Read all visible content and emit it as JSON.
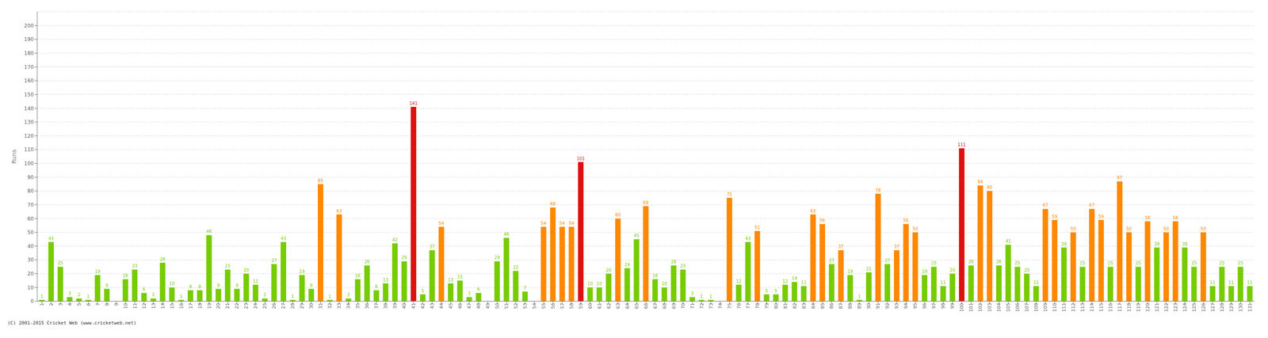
{
  "chart_data": {
    "type": "bar",
    "ylabel": "Runs",
    "annotations": [
      "(C) 2001-2015 Cricket Web (www.cricketweb.net)"
    ],
    "categories": [
      1,
      2,
      3,
      4,
      5,
      6,
      7,
      8,
      9,
      10,
      11,
      12,
      13,
      14,
      15,
      16,
      17,
      18,
      19,
      20,
      21,
      22,
      23,
      24,
      25,
      26,
      27,
      28,
      29,
      30,
      31,
      32,
      33,
      34,
      35,
      36,
      37,
      38,
      39,
      40,
      41,
      42,
      43,
      44,
      45,
      46,
      47,
      48,
      49,
      50,
      51,
      52,
      53,
      54,
      55,
      56,
      57,
      58,
      59,
      60,
      61,
      62,
      63,
      64,
      65,
      66,
      67,
      68,
      69,
      70,
      71,
      72,
      73,
      74,
      75,
      76,
      77,
      78,
      79,
      80,
      81,
      82,
      83,
      84,
      85,
      86,
      87,
      88,
      89,
      90,
      91,
      92,
      93,
      94,
      95,
      96,
      97,
      98,
      99,
      100,
      101,
      102,
      103,
      104,
      105,
      106,
      107,
      108,
      109,
      110,
      111,
      112,
      113,
      114,
      115,
      116,
      117,
      118,
      119,
      120,
      121,
      122,
      123,
      124,
      125,
      126,
      127,
      128,
      129,
      130,
      131
    ],
    "values": [
      1,
      43,
      25,
      3,
      2,
      1,
      19,
      9,
      0,
      16,
      23,
      6,
      2,
      28,
      10,
      1,
      8,
      8,
      48,
      9,
      23,
      9,
      20,
      12,
      2,
      27,
      43,
      1,
      19,
      9,
      85,
      1,
      63,
      2,
      16,
      26,
      8,
      13,
      42,
      29,
      141,
      5,
      37,
      54,
      13,
      15,
      3,
      6,
      0,
      29,
      46,
      22,
      7,
      0,
      54,
      68,
      54,
      54,
      101,
      10,
      10,
      20,
      60,
      24,
      45,
      69,
      16,
      10,
      26,
      23,
      3,
      1,
      1,
      0,
      75,
      12,
      43,
      51,
      5,
      5,
      12,
      14,
      11,
      63,
      56,
      27,
      37,
      19,
      1,
      21,
      78,
      27,
      37,
      56,
      50,
      19,
      25,
      11,
      20,
      111,
      26,
      84,
      80,
      26,
      41,
      25,
      20,
      11,
      67,
      59,
      39,
      50,
      25,
      67,
      59,
      25,
      87,
      50,
      25,
      58,
      39,
      50,
      58,
      39,
      25,
      50,
      11,
      25,
      11,
      25,
      11
    ],
    "colors": [
      "#77cc00",
      "#77cc00",
      "#77cc00",
      "#77cc00",
      "#77cc00",
      "#77cc00",
      "#77cc00",
      "#77cc00",
      "#77cc00",
      "#77cc00",
      "#77cc00",
      "#77cc00",
      "#77cc00",
      "#77cc00",
      "#77cc00",
      "#77cc00",
      "#77cc00",
      "#77cc00",
      "#77cc00",
      "#77cc00",
      "#77cc00",
      "#77cc00",
      "#77cc00",
      "#77cc00",
      "#77cc00",
      "#77cc00",
      "#77cc00",
      "#77cc00",
      "#77cc00",
      "#77cc00",
      "#ff8800",
      "#77cc00",
      "#ff8800",
      "#77cc00",
      "#77cc00",
      "#77cc00",
      "#77cc00",
      "#77cc00",
      "#77cc00",
      "#77cc00",
      "#dd1111",
      "#77cc00",
      "#77cc00",
      "#ff8800",
      "#77cc00",
      "#77cc00",
      "#77cc00",
      "#77cc00",
      "#77cc00",
      "#77cc00",
      "#77cc00",
      "#77cc00",
      "#77cc00",
      "#77cc00",
      "#ff8800",
      "#ff8800",
      "#ff8800",
      "#ff8800",
      "#dd1111",
      "#77cc00",
      "#77cc00",
      "#77cc00",
      "#ff8800",
      "#77cc00",
      "#77cc00",
      "#ff8800",
      "#77cc00",
      "#77cc00",
      "#77cc00",
      "#77cc00",
      "#77cc00",
      "#77cc00",
      "#77cc00",
      "#77cc00",
      "#ff8800",
      "#77cc00",
      "#77cc00",
      "#ff8800",
      "#77cc00",
      "#77cc00",
      "#77cc00",
      "#77cc00",
      "#77cc00",
      "#ff8800",
      "#ff8800",
      "#77cc00",
      "#ff8800",
      "#77cc00",
      "#77cc00",
      "#77cc00",
      "#ff8800",
      "#77cc00",
      "#ff8800",
      "#ff8800",
      "#ff8800",
      "#77cc00",
      "#77cc00",
      "#77cc00",
      "#77cc00",
      "#dd1111",
      "#77cc00",
      "#ff8800",
      "#ff8800",
      "#77cc00",
      "#77cc00",
      "#77cc00",
      "#77cc00",
      "#77cc00",
      "#ff8800",
      "#ff8800",
      "#77cc00",
      "#ff8800",
      "#77cc00",
      "#ff8800",
      "#ff8800",
      "#77cc00",
      "#ff8800",
      "#ff8800",
      "#77cc00",
      "#ff8800",
      "#77cc00",
      "#ff8800",
      "#ff8800",
      "#77cc00",
      "#77cc00",
      "#ff8800",
      "#77cc00",
      "#77cc00",
      "#77cc00",
      "#77cc00",
      "#77cc00"
    ],
    "ylim": [
      0,
      210
    ],
    "yticks": [
      0,
      10,
      20,
      30,
      40,
      50,
      60,
      70,
      80,
      90,
      100,
      110,
      120,
      130,
      140,
      150,
      160,
      170,
      180,
      190,
      200
    ],
    "grid": true,
    "data_labels": true
  }
}
